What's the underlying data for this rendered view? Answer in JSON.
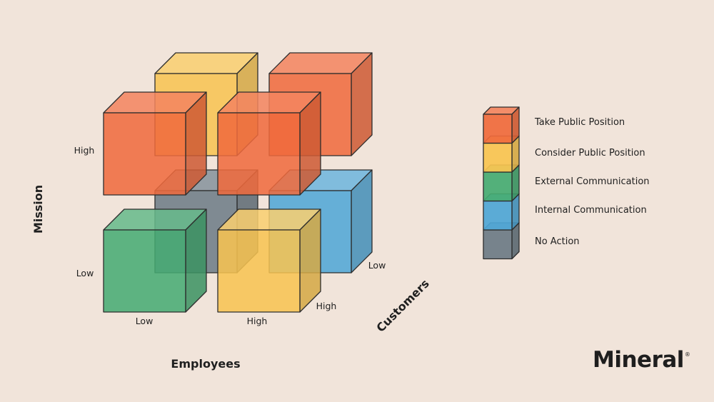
{
  "colors": {
    "background": "#f1e4da",
    "take_public": "#f06a3c",
    "consider_public": "#f8c450",
    "external": "#45ab72",
    "internal": "#4ea6d6",
    "no_action": "#6c7b86",
    "outline": "#2d2d2d"
  },
  "axes": {
    "mission": {
      "label": "Mission",
      "high": "High",
      "low": "Low"
    },
    "employees": {
      "label": "Employees",
      "low": "Low",
      "high": "High"
    },
    "customers": {
      "label": "Customers",
      "high": "High",
      "low": "Low"
    }
  },
  "cubes": [
    {
      "mission": "Low",
      "employees": "Low",
      "customers": "Low",
      "category": "no_action"
    },
    {
      "mission": "Low",
      "employees": "High",
      "customers": "Low",
      "category": "internal"
    },
    {
      "mission": "High",
      "employees": "Low",
      "customers": "Low",
      "category": "consider_public"
    },
    {
      "mission": "High",
      "employees": "High",
      "customers": "Low",
      "category": "take_public"
    },
    {
      "mission": "Low",
      "employees": "Low",
      "customers": "High",
      "category": "external"
    },
    {
      "mission": "Low",
      "employees": "High",
      "customers": "High",
      "category": "consider_public"
    },
    {
      "mission": "High",
      "employees": "Low",
      "customers": "High",
      "category": "take_public"
    },
    {
      "mission": "High",
      "employees": "High",
      "customers": "High",
      "category": "take_public"
    }
  ],
  "legend": [
    {
      "key": "take_public",
      "label": "Take Public Position"
    },
    {
      "key": "consider_public",
      "label": "Consider Public Position"
    },
    {
      "key": "external",
      "label": "External Communication"
    },
    {
      "key": "internal",
      "label": "Internal Communication"
    },
    {
      "key": "no_action",
      "label": "No Action"
    }
  ],
  "brand": {
    "name": "Mineral",
    "mark": "®"
  }
}
